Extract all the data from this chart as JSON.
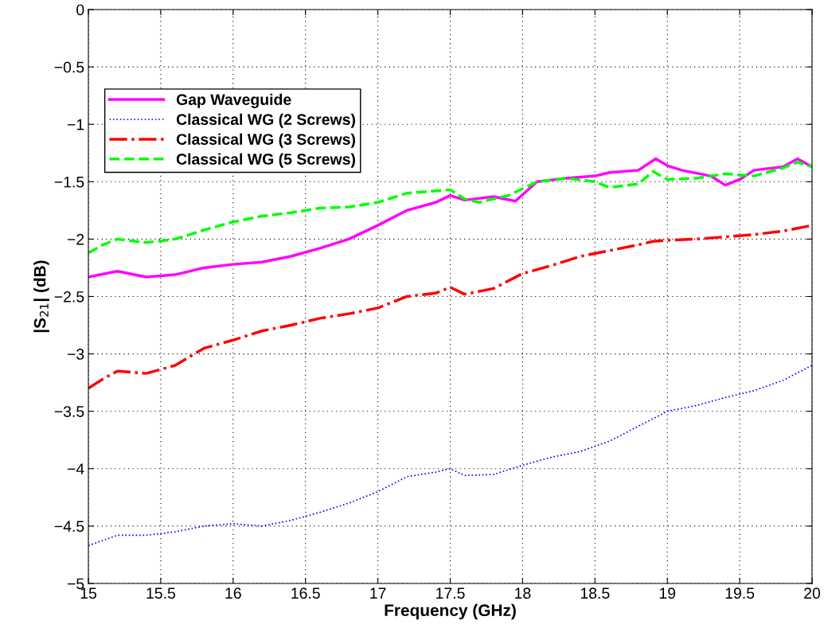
{
  "chart_data": {
    "type": "line",
    "xlabel": "Frequency (GHz)",
    "ylabel": "|S$_{21}$| (dB)",
    "xlim": [
      15,
      20
    ],
    "xticks": [
      15,
      15.5,
      16,
      16.5,
      17,
      17.5,
      18,
      18.5,
      19,
      19.5,
      20
    ],
    "ylim": [
      -5,
      0
    ],
    "yticks": [
      {
        "value": -5,
        "label": "−5"
      },
      {
        "value": -4.5,
        "label": "−4.5"
      },
      {
        "value": -4,
        "label": "−4"
      },
      {
        "value": -3.5,
        "label": "−3.5"
      },
      {
        "value": -3,
        "label": "−3"
      },
      {
        "value": -2.5,
        "label": "−2.5"
      },
      {
        "value": -2,
        "label": "−2"
      },
      {
        "value": -1.5,
        "label": "−1.5"
      },
      {
        "value": -1,
        "label": "−1"
      },
      {
        "value": -0.5,
        "label": "−0.5"
      },
      0
    ],
    "grid": true,
    "legend": "top left",
    "series": [
      {
        "name": "Gap Waveguide",
        "color": "#ff00ff",
        "line_style": "solid",
        "x": [
          15,
          15.2,
          15.4,
          15.6,
          15.8,
          16,
          16.2,
          16.4,
          16.6,
          16.8,
          17,
          17.2,
          17.4,
          17.5,
          17.6,
          17.8,
          17.95,
          18.1,
          18.3,
          18.5,
          18.6,
          18.8,
          18.92,
          19.0,
          19.1,
          19.3,
          19.4,
          19.5,
          19.6,
          19.8,
          19.9,
          20
        ],
        "values": [
          -2.33,
          -2.28,
          -2.33,
          -2.31,
          -2.25,
          -2.22,
          -2.2,
          -2.15,
          -2.08,
          -2.0,
          -1.88,
          -1.75,
          -1.68,
          -1.62,
          -1.66,
          -1.63,
          -1.67,
          -1.5,
          -1.47,
          -1.45,
          -1.42,
          -1.4,
          -1.3,
          -1.36,
          -1.4,
          -1.45,
          -1.53,
          -1.48,
          -1.4,
          -1.37,
          -1.3,
          -1.37
        ]
      },
      {
        "name": "Classical WG (2 Screws)",
        "color": "#0000ff",
        "line_style": "dotted",
        "x": [
          15,
          15.2,
          15.4,
          15.6,
          15.8,
          16,
          16.2,
          16.4,
          16.6,
          16.8,
          17,
          17.2,
          17.4,
          17.5,
          17.6,
          17.8,
          18,
          18.2,
          18.4,
          18.6,
          18.8,
          19,
          19.2,
          19.4,
          19.6,
          19.8,
          20
        ],
        "values": [
          -4.67,
          -4.58,
          -4.58,
          -4.55,
          -4.5,
          -4.48,
          -4.5,
          -4.45,
          -4.38,
          -4.3,
          -4.2,
          -4.07,
          -4.03,
          -4.0,
          -4.06,
          -4.05,
          -3.97,
          -3.9,
          -3.85,
          -3.76,
          -3.63,
          -3.5,
          -3.45,
          -3.38,
          -3.32,
          -3.23,
          -3.1
        ]
      },
      {
        "name": "Classical WG (3 Screws)",
        "color": "#ff0000",
        "line_style": "dashdot",
        "x": [
          15,
          15.1,
          15.2,
          15.4,
          15.6,
          15.8,
          16,
          16.2,
          16.4,
          16.6,
          16.8,
          17,
          17.2,
          17.4,
          17.5,
          17.6,
          17.8,
          18,
          18.2,
          18.4,
          18.6,
          18.8,
          18.9,
          19.0,
          19.2,
          19.4,
          19.6,
          19.8,
          20
        ],
        "values": [
          -3.3,
          -3.22,
          -3.15,
          -3.17,
          -3.1,
          -2.95,
          -2.88,
          -2.8,
          -2.75,
          -2.69,
          -2.65,
          -2.6,
          -2.5,
          -2.47,
          -2.42,
          -2.48,
          -2.43,
          -2.3,
          -2.23,
          -2.15,
          -2.1,
          -2.05,
          -2.02,
          -2.01,
          -2.0,
          -1.98,
          -1.96,
          -1.93,
          -1.88
        ]
      },
      {
        "name": "Classical WG (5 Screws)",
        "color": "#00ff00",
        "line_style": "dashed",
        "x": [
          15,
          15.1,
          15.2,
          15.4,
          15.6,
          15.8,
          16,
          16.2,
          16.4,
          16.6,
          16.8,
          17,
          17.2,
          17.4,
          17.5,
          17.6,
          17.7,
          17.9,
          18.1,
          18.3,
          18.5,
          18.6,
          18.8,
          18.9,
          19.0,
          19.2,
          19.4,
          19.6,
          19.8,
          19.9,
          20
        ],
        "values": [
          -2.12,
          -2.05,
          -2.0,
          -2.03,
          -2.0,
          -1.92,
          -1.85,
          -1.8,
          -1.77,
          -1.73,
          -1.72,
          -1.68,
          -1.6,
          -1.58,
          -1.57,
          -1.65,
          -1.68,
          -1.62,
          -1.5,
          -1.47,
          -1.5,
          -1.55,
          -1.52,
          -1.41,
          -1.48,
          -1.47,
          -1.43,
          -1.45,
          -1.38,
          -1.33,
          -1.37
        ]
      }
    ]
  }
}
